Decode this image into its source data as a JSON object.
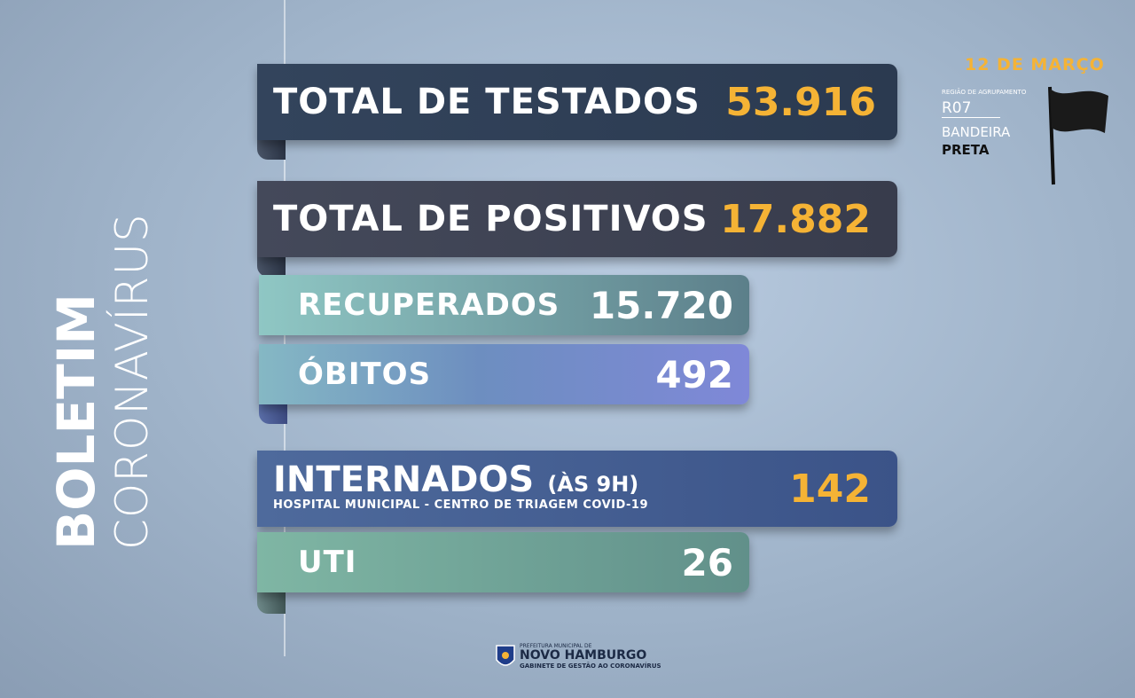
{
  "side": {
    "title": "BOLETIM",
    "subtitle": "CORONAVÍRUS"
  },
  "date": "12 DE MARÇO",
  "region": {
    "label": "REGIÃO DE AGRUPAMENTO",
    "code": "R07",
    "flag_label": "BANDEIRA",
    "flag": "PRETA"
  },
  "rows": [
    {
      "label": "TOTAL DE TESTADOS",
      "value": "53.916"
    },
    {
      "label": "TOTAL DE POSITIVOS",
      "value": "17.882"
    },
    {
      "label": "RECUPERADOS",
      "value": "15.720"
    },
    {
      "label": "ÓBITOS",
      "value": "492"
    },
    {
      "label": "INTERNADOS",
      "note": "(ÀS 9H)",
      "sub": "HOSPITAL MUNICIPAL - CENTRO DE TRIAGEM COVID-19",
      "value": "142"
    },
    {
      "label": "UTI",
      "value": "26"
    }
  ],
  "footer": {
    "line1": "PREFEITURA MUNICIPAL DE",
    "line2": "NOVO HAMBURGO",
    "line3": "GABINETE DE GESTÃO AO CORONAVÍRUS"
  }
}
